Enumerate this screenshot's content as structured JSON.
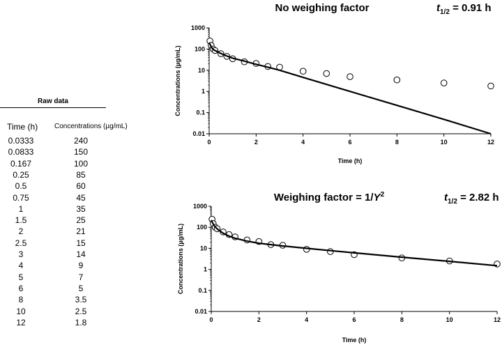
{
  "raw_table": {
    "title": "Raw data",
    "col_time": "Time (h)",
    "col_conc": "Concentrations (µg/mL)",
    "rows": [
      {
        "t": "0.0333",
        "c": "240"
      },
      {
        "t": "0.0833",
        "c": "150"
      },
      {
        "t": "0.167",
        "c": "100"
      },
      {
        "t": "0.25",
        "c": "85"
      },
      {
        "t": "0.5",
        "c": "60"
      },
      {
        "t": "0.75",
        "c": "45"
      },
      {
        "t": "1",
        "c": "35"
      },
      {
        "t": "1.5",
        "c": "25"
      },
      {
        "t": "2",
        "c": "21"
      },
      {
        "t": "2.5",
        "c": "15"
      },
      {
        "t": "3",
        "c": "14"
      },
      {
        "t": "4",
        "c": "9"
      },
      {
        "t": "5",
        "c": "7"
      },
      {
        "t": "6",
        "c": "5"
      },
      {
        "t": "8",
        "c": "3.5"
      },
      {
        "t": "10",
        "c": "2.5"
      },
      {
        "t": "12",
        "c": "1.8"
      }
    ]
  },
  "chart_data": [
    {
      "type": "scatter",
      "title": "No weighing factor",
      "half_life": {
        "symbol": "t",
        "subscript": "1/2",
        "value": " = 0.91 h"
      },
      "xlabel": "Time (h)",
      "ylabel": "Concentrations (µg/mL)",
      "yscale": "log",
      "xlim": [
        0,
        12
      ],
      "ylim": [
        0.01,
        1000
      ],
      "xticks": [
        0,
        2,
        4,
        6,
        8,
        10,
        12
      ],
      "yticks": [
        0.01,
        0.1,
        1,
        10,
        100,
        1000
      ],
      "ytick_labels": [
        "0.01",
        "0.1",
        "1",
        "10",
        "100",
        "1000"
      ],
      "series": [
        {
          "kind": "points",
          "x": [
            0.0333,
            0.0833,
            0.167,
            0.25,
            0.5,
            0.75,
            1,
            1.5,
            2,
            2.5,
            3,
            4,
            5,
            6,
            8,
            10,
            12
          ],
          "y": [
            240,
            150,
            100,
            85,
            60,
            45,
            35,
            25,
            21,
            15,
            14,
            9,
            7,
            5,
            3.5,
            2.5,
            1.8
          ]
        },
        {
          "kind": "fit",
          "x": [
            0,
            0.1,
            0.2,
            0.3,
            0.5,
            0.75,
            1,
            1.5,
            2,
            2.5,
            3,
            4,
            6,
            8,
            10,
            12
          ],
          "y": [
            200,
            120,
            90,
            80,
            62,
            47,
            37,
            27,
            19,
            14,
            10,
            4.6,
            1.0,
            0.22,
            0.048,
            0.01
          ]
        }
      ]
    },
    {
      "type": "scatter",
      "title_prefix": "Weighing factor = 1/",
      "title_var": "Y",
      "title_sup": "2",
      "half_life": {
        "symbol": "t",
        "subscript": "1/2",
        "value": " = 2.82 h"
      },
      "xlabel": "Time (h)",
      "ylabel": "Concentrations (µg/mL)",
      "yscale": "log",
      "xlim": [
        0,
        12
      ],
      "ylim": [
        0.01,
        1000
      ],
      "xticks": [
        0,
        2,
        4,
        6,
        8,
        10,
        12
      ],
      "yticks": [
        0.01,
        0.1,
        1,
        10,
        100,
        1000
      ],
      "ytick_labels": [
        "0.01",
        "0.1",
        "1",
        "10",
        "100",
        "1000"
      ],
      "series": [
        {
          "kind": "points",
          "x": [
            0.0333,
            0.0833,
            0.167,
            0.25,
            0.5,
            0.75,
            1,
            1.5,
            2,
            2.5,
            3,
            4,
            5,
            6,
            8,
            10,
            12
          ],
          "y": [
            240,
            150,
            100,
            85,
            60,
            45,
            35,
            25,
            21,
            15,
            14,
            9,
            7,
            5,
            3.5,
            2.5,
            1.8
          ]
        },
        {
          "kind": "fit",
          "x": [
            0,
            0.1,
            0.2,
            0.3,
            0.5,
            0.75,
            1,
            1.5,
            2,
            2.5,
            3,
            4,
            5,
            6,
            8,
            10,
            12
          ],
          "y": [
            220,
            130,
            95,
            75,
            52,
            38,
            30,
            22,
            17.5,
            15,
            13,
            10,
            7.8,
            6.1,
            3.8,
            2.4,
            1.5
          ]
        }
      ]
    }
  ]
}
